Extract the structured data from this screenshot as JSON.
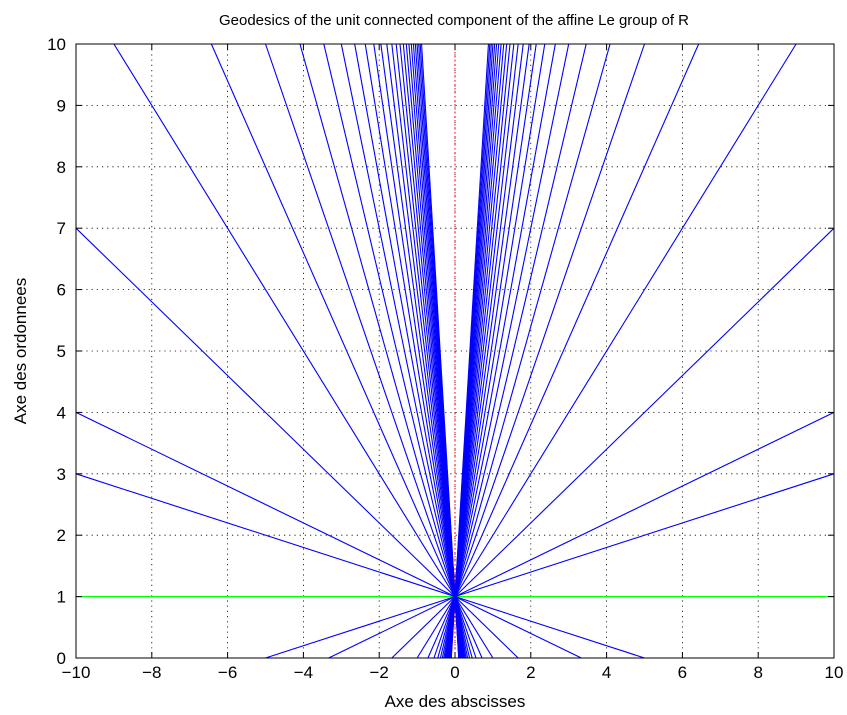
{
  "chart_data": {
    "type": "line",
    "title": "Geodesics of the unit connected component of the affine Le group of R",
    "xlabel": "Axe des abscisses",
    "ylabel": "Axe des ordonnees",
    "xlim": [
      -10,
      10
    ],
    "ylim": [
      0,
      10
    ],
    "xticks": [
      "−10",
      "−8",
      "−6",
      "−4",
      "−2",
      "0",
      "2",
      "4",
      "6",
      "8",
      "10"
    ],
    "yticks": [
      "0",
      "1",
      "2",
      "3",
      "4",
      "5",
      "6",
      "7",
      "8",
      "9",
      "10"
    ],
    "grid": true,
    "colors": {
      "geodesic": "#0000ff",
      "horizontal": "#00ff00",
      "vertical": "#ff0000"
    },
    "geodesic_slopes": [
      0.2,
      0.3,
      0.6,
      1,
      1.4,
      1.8,
      2.2,
      2.6,
      3,
      3.4,
      3.8,
      4.2,
      4.6,
      5,
      5.4,
      5.8,
      6.2,
      6.6,
      7,
      7.4,
      7.8,
      8.2,
      8.6,
      9,
      9.4,
      9.8,
      10.2,
      -0.2,
      -0.3,
      -0.6,
      -1,
      -1.4,
      -1.8,
      -2.2,
      -2.6,
      -3,
      -3.4,
      -3.8,
      -4.2,
      -4.6,
      -5,
      -5.4,
      -5.8,
      -6.2,
      -6.6,
      -7,
      -7.4,
      -7.8,
      -8.2,
      -8.6,
      -9,
      -9.4,
      -9.8,
      -10.2
    ],
    "geodesic_point": [
      0,
      1
    ],
    "horizontal_line": {
      "y": 1
    },
    "vertical_line": {
      "x": 0
    }
  }
}
